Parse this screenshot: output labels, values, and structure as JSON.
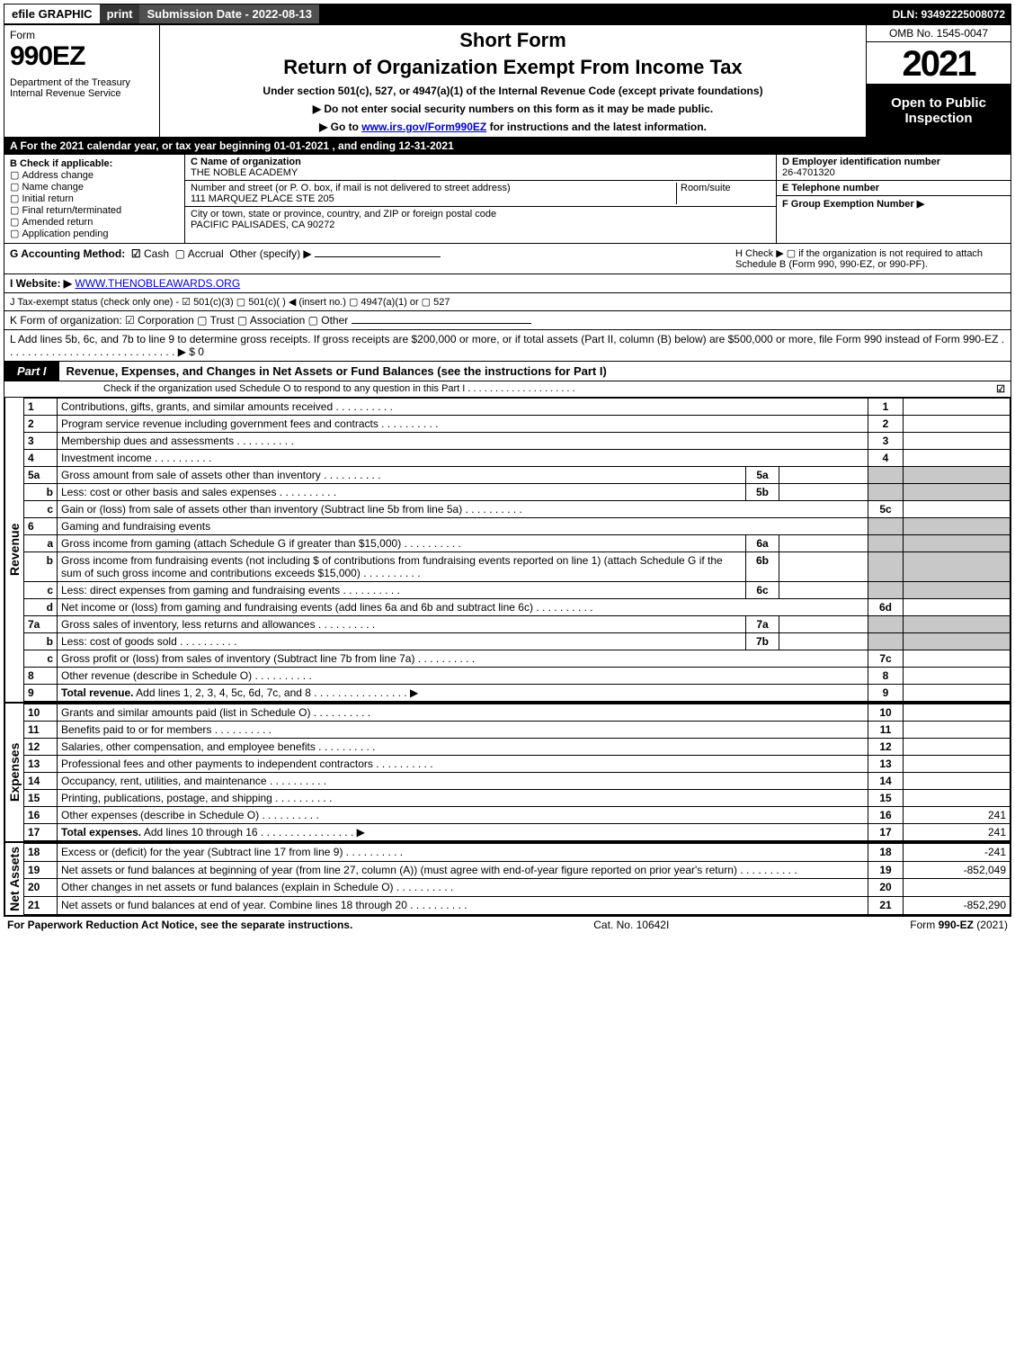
{
  "topbar": {
    "efile": "efile GRAPHIC",
    "print": "print",
    "submission": "Submission Date - 2022-08-13",
    "dln": "DLN: 93492225008072"
  },
  "header": {
    "form_word": "Form",
    "form_num": "990EZ",
    "dept": "Department of the Treasury\nInternal Revenue Service",
    "short_form": "Short Form",
    "title": "Return of Organization Exempt From Income Tax",
    "under": "Under section 501(c), 527, or 4947(a)(1) of the Internal Revenue Code (except private foundations)",
    "arrow1": "▶ Do not enter social security numbers on this form as it may be made public.",
    "arrow2_pre": "▶ Go to ",
    "arrow2_link": "www.irs.gov/Form990EZ",
    "arrow2_post": " for instructions and the latest information.",
    "omb": "OMB No. 1545-0047",
    "year": "2021",
    "open": "Open to Public Inspection"
  },
  "secA": "A  For the 2021 calendar year, or tax year beginning 01-01-2021  , and ending 12-31-2021",
  "b": {
    "head": "B  Check if applicable:",
    "opts": [
      "Address change",
      "Name change",
      "Initial return",
      "Final return/terminated",
      "Amended return",
      "Application pending"
    ]
  },
  "c": {
    "name_lbl": "C Name of organization",
    "name": "THE NOBLE ACADEMY",
    "street_lbl": "Number and street (or P. O. box, if mail is not delivered to street address)",
    "room_lbl": "Room/suite",
    "street": "111 MARQUEZ PLACE STE 205",
    "city_lbl": "City or town, state or province, country, and ZIP or foreign postal code",
    "city": "PACIFIC PALISADES, CA  90272"
  },
  "d": {
    "lbl": "D Employer identification number",
    "val": "26-4701320"
  },
  "e": {
    "lbl": "E Telephone number",
    "val": ""
  },
  "f": {
    "lbl": "F Group Exemption Number  ▶",
    "val": ""
  },
  "g": {
    "lbl": "G Accounting Method:",
    "cash": "Cash",
    "accrual": "Accrual",
    "other": "Other (specify) ▶"
  },
  "h": {
    "text": "H  Check ▶  ▢  if the organization is not required to attach Schedule B (Form 990, 990-EZ, or 990-PF)."
  },
  "i": {
    "lbl": "I Website: ▶",
    "val": "WWW.THENOBLEAWARDS.ORG"
  },
  "j": {
    "text": "J Tax-exempt status (check only one) -  ☑ 501(c)(3)  ▢ 501(c)(  ) ◀ (insert no.)  ▢ 4947(a)(1) or  ▢ 527"
  },
  "k": {
    "text": "K Form of organization:   ☑ Corporation   ▢ Trust   ▢ Association   ▢ Other"
  },
  "l": {
    "text": "L Add lines 5b, 6c, and 7b to line 9 to determine gross receipts. If gross receipts are $200,000 or more, or if total assets (Part II, column (B) below) are $500,000 or more, file Form 990 instead of Form 990-EZ  .  .  .  .  .  .  .  .  .  .  .  .  .  .  .  .  .  .  .  .  .  .  .  .  .  .  .  .  .  ▶ $ 0"
  },
  "part1": {
    "label": "Part I",
    "title": "Revenue, Expenses, and Changes in Net Assets or Fund Balances (see the instructions for Part I)",
    "sub": "Check if the organization used Schedule O to respond to any question in this Part I  .  .  .  .  .  .  .  .  .  .  .  .  .  .  .  .  .  .  .  .",
    "sub_chk": "☑"
  },
  "sidebars": {
    "rev": "Revenue",
    "exp": "Expenses",
    "na": "Net Assets"
  },
  "revenue": [
    {
      "n": "1",
      "t": "Contributions, gifts, grants, and similar amounts received",
      "r": "1",
      "v": ""
    },
    {
      "n": "2",
      "t": "Program service revenue including government fees and contracts",
      "r": "2",
      "v": ""
    },
    {
      "n": "3",
      "t": "Membership dues and assessments",
      "r": "3",
      "v": ""
    },
    {
      "n": "4",
      "t": "Investment income",
      "r": "4",
      "v": ""
    },
    {
      "n": "5a",
      "t": "Gross amount from sale of assets other than inventory",
      "ib": "5a"
    },
    {
      "n": "b",
      "t": "Less: cost or other basis and sales expenses",
      "ib": "5b"
    },
    {
      "n": "c",
      "t": "Gain or (loss) from sale of assets other than inventory (Subtract line 5b from line 5a)",
      "r": "5c",
      "v": ""
    },
    {
      "n": "6",
      "t": "Gaming and fundraising events"
    },
    {
      "n": "a",
      "t": "Gross income from gaming (attach Schedule G if greater than $15,000)",
      "ib": "6a"
    },
    {
      "n": "b",
      "t": "Gross income from fundraising events (not including $                     of contributions from fundraising events reported on line 1) (attach Schedule G if the sum of such gross income and contributions exceeds $15,000)",
      "ib": "6b"
    },
    {
      "n": "c",
      "t": "Less: direct expenses from gaming and fundraising events",
      "ib": "6c"
    },
    {
      "n": "d",
      "t": "Net income or (loss) from gaming and fundraising events (add lines 6a and 6b and subtract line 6c)",
      "r": "6d",
      "v": ""
    },
    {
      "n": "7a",
      "t": "Gross sales of inventory, less returns and allowances",
      "ib": "7a"
    },
    {
      "n": "b",
      "t": "Less: cost of goods sold",
      "ib": "7b"
    },
    {
      "n": "c",
      "t": "Gross profit or (loss) from sales of inventory (Subtract line 7b from line 7a)",
      "r": "7c",
      "v": ""
    },
    {
      "n": "8",
      "t": "Other revenue (describe in Schedule O)",
      "r": "8",
      "v": ""
    },
    {
      "n": "9",
      "t": "Total revenue. Add lines 1, 2, 3, 4, 5c, 6d, 7c, and 8",
      "r": "9",
      "v": "",
      "bold": true,
      "arrow": true
    }
  ],
  "expenses": [
    {
      "n": "10",
      "t": "Grants and similar amounts paid (list in Schedule O)",
      "r": "10",
      "v": ""
    },
    {
      "n": "11",
      "t": "Benefits paid to or for members",
      "r": "11",
      "v": ""
    },
    {
      "n": "12",
      "t": "Salaries, other compensation, and employee benefits",
      "r": "12",
      "v": ""
    },
    {
      "n": "13",
      "t": "Professional fees and other payments to independent contractors",
      "r": "13",
      "v": ""
    },
    {
      "n": "14",
      "t": "Occupancy, rent, utilities, and maintenance",
      "r": "14",
      "v": ""
    },
    {
      "n": "15",
      "t": "Printing, publications, postage, and shipping",
      "r": "15",
      "v": ""
    },
    {
      "n": "16",
      "t": "Other expenses (describe in Schedule O)",
      "r": "16",
      "v": "241"
    },
    {
      "n": "17",
      "t": "Total expenses. Add lines 10 through 16",
      "r": "17",
      "v": "241",
      "bold": true,
      "arrow": true
    }
  ],
  "netassets": [
    {
      "n": "18",
      "t": "Excess or (deficit) for the year (Subtract line 17 from line 9)",
      "r": "18",
      "v": "-241"
    },
    {
      "n": "19",
      "t": "Net assets or fund balances at beginning of year (from line 27, column (A)) (must agree with end-of-year figure reported on prior year's return)",
      "r": "19",
      "v": "-852,049"
    },
    {
      "n": "20",
      "t": "Other changes in net assets or fund balances (explain in Schedule O)",
      "r": "20",
      "v": ""
    },
    {
      "n": "21",
      "t": "Net assets or fund balances at end of year. Combine lines 18 through 20",
      "r": "21",
      "v": "-852,290"
    }
  ],
  "footer": {
    "left": "For Paperwork Reduction Act Notice, see the separate instructions.",
    "mid": "Cat. No. 10642I",
    "right_pre": "Form ",
    "right_b": "990-EZ",
    "right_post": " (2021)"
  }
}
